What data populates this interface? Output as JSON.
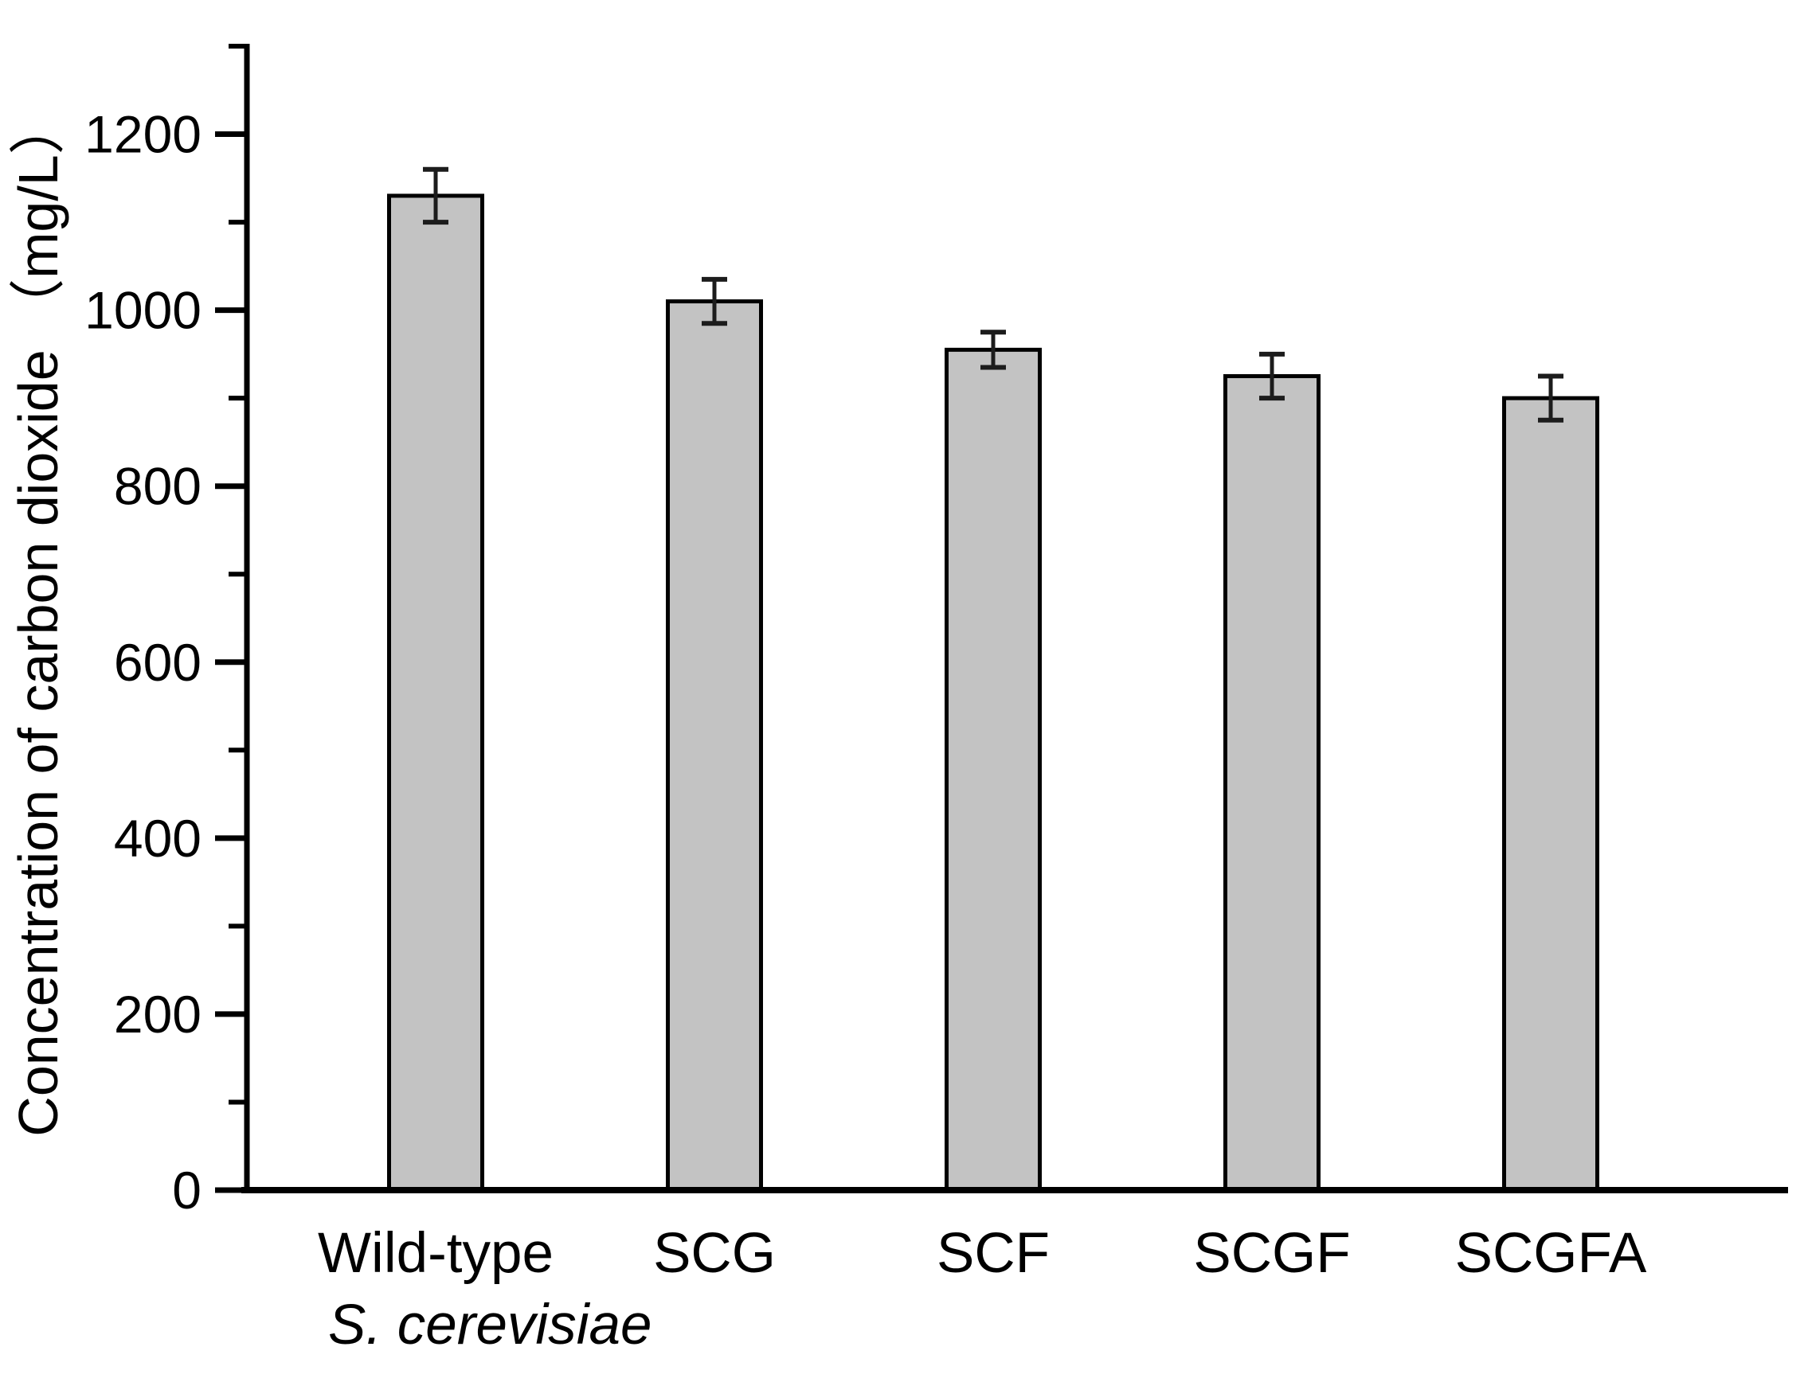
{
  "chart_data": {
    "type": "bar",
    "title": "",
    "categories": [
      "Wild-type",
      "SCG",
      "SCF",
      "SCGF",
      "SCGFA"
    ],
    "x_sublabel": "S. cerevisiae",
    "values": [
      1130,
      1010,
      955,
      925,
      900
    ],
    "errors": [
      30,
      25,
      20,
      25,
      25
    ],
    "ylabel": "Concentration of carbon dioxide （mg/L）",
    "xlabel": "",
    "ylim": [
      0,
      1300
    ],
    "yticks_major": [
      0,
      200,
      400,
      600,
      800,
      1000,
      1200
    ],
    "yticks_minor": [
      100,
      300,
      500,
      700,
      900,
      1100,
      1300
    ],
    "grid": false,
    "legend": null,
    "colors": {
      "bar_fill": "#c3c3c3",
      "bar_border": "#000000",
      "error_bar": "#1c1c1c",
      "axis": "#000000",
      "background": "#ffffff"
    }
  }
}
